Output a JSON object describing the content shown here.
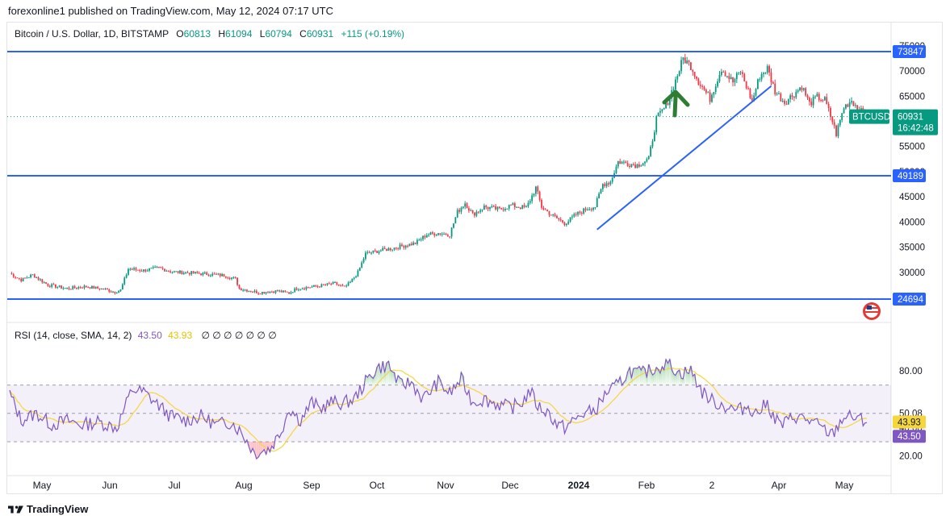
{
  "header": {
    "text": "forexonline1 published on TradingView.com, May 12, 2024 07:17 UTC"
  },
  "legend": {
    "symbol": "Bitcoin / U.S. Dollar, 1D, BITSTAMP",
    "o_label": "O",
    "o": "60813",
    "h_label": "H",
    "h": "61094",
    "l_label": "L",
    "l": "60794",
    "c_label": "C",
    "c": "60931",
    "change": "+115 (+0.19%)"
  },
  "price_axis": {
    "ticks": [
      "75000",
      "70000",
      "65000",
      "55000",
      "50000",
      "45000",
      "40000",
      "35000",
      "30000"
    ],
    "levels": [
      {
        "label": "73847",
        "value": 73847
      },
      {
        "label": "49189",
        "value": 49189
      },
      {
        "label": "24694",
        "value": 24694
      }
    ],
    "current": {
      "ticker": "BTCUSD",
      "price": "60931",
      "countdown": "16:42:48",
      "value": 60931
    }
  },
  "rsi": {
    "legend": "RSI (14, close, SMA, 14, 2)",
    "value": "43.50",
    "sma": "43.93",
    "symbols": "∅ ∅ ∅ ∅ ∅ ∅ ∅",
    "ticks": [
      "80.00",
      "50.08",
      "40.00",
      "33.40",
      "20.00"
    ],
    "badge_sma": "43.93",
    "badge_rsi": "43.50"
  },
  "time_axis": [
    "May",
    "Jun",
    "Jul",
    "Aug",
    "Sep",
    "Oct",
    "Nov",
    "Dec",
    "2024",
    "Feb",
    "2",
    "Apr",
    "May"
  ],
  "colors": {
    "up": "#089981",
    "down": "#f23645",
    "line": "#2962ff",
    "rsi": "#7e57c2",
    "rsi_ma": "#f5d63d",
    "arrow": "#2e7d32"
  },
  "footer": {
    "brand": "TradingView"
  },
  "chart_data": {
    "type": "candlestick",
    "symbol": "BTCUSD",
    "timeframe": "1D",
    "ylim": [
      21500,
      77000
    ],
    "anchors": [
      [
        0,
        29800
      ],
      [
        6,
        28500
      ],
      [
        12,
        29500
      ],
      [
        20,
        27500
      ],
      [
        30,
        26800
      ],
      [
        40,
        27200
      ],
      [
        50,
        26600
      ],
      [
        55,
        26100
      ],
      [
        58,
        26500
      ],
      [
        62,
        30700
      ],
      [
        70,
        30400
      ],
      [
        78,
        30900
      ],
      [
        85,
        30100
      ],
      [
        95,
        29900
      ],
      [
        105,
        29600
      ],
      [
        112,
        29400
      ],
      [
        118,
        28700
      ],
      [
        120,
        26800
      ],
      [
        130,
        26000
      ],
      [
        140,
        26300
      ],
      [
        146,
        25900
      ],
      [
        150,
        26800
      ],
      [
        160,
        27200
      ],
      [
        170,
        27800
      ],
      [
        175,
        27000
      ],
      [
        178,
        28000
      ],
      [
        182,
        30000
      ],
      [
        186,
        33700
      ],
      [
        192,
        34200
      ],
      [
        200,
        34800
      ],
      [
        206,
        35300
      ],
      [
        212,
        35800
      ],
      [
        218,
        37500
      ],
      [
        224,
        37800
      ],
      [
        230,
        37500
      ],
      [
        234,
        42000
      ],
      [
        238,
        43800
      ],
      [
        242,
        41500
      ],
      [
        248,
        43000
      ],
      [
        256,
        42500
      ],
      [
        262,
        43300
      ],
      [
        270,
        42800
      ],
      [
        275,
        46800
      ],
      [
        278,
        43000
      ],
      [
        284,
        41200
      ],
      [
        290,
        39800
      ],
      [
        292,
        40200
      ],
      [
        296,
        41500
      ],
      [
        302,
        42700
      ],
      [
        306,
        43100
      ],
      [
        310,
        47500
      ],
      [
        314,
        48000
      ],
      [
        318,
        52000
      ],
      [
        322,
        51700
      ],
      [
        328,
        51300
      ],
      [
        334,
        52500
      ],
      [
        338,
        60500
      ],
      [
        343,
        63000
      ],
      [
        347,
        67000
      ],
      [
        352,
        72500
      ],
      [
        356,
        71000
      ],
      [
        360,
        68000
      ],
      [
        366,
        64500
      ],
      [
        372,
        70500
      ],
      [
        378,
        67800
      ],
      [
        382,
        70000
      ],
      [
        388,
        64000
      ],
      [
        392,
        69000
      ],
      [
        396,
        70500
      ],
      [
        400,
        66000
      ],
      [
        405,
        63800
      ],
      [
        410,
        65500
      ],
      [
        414,
        67000
      ],
      [
        418,
        63500
      ],
      [
        422,
        64800
      ],
      [
        426,
        64200
      ],
      [
        430,
        60000
      ],
      [
        432,
        57500
      ],
      [
        436,
        62800
      ],
      [
        440,
        64200
      ],
      [
        444,
        62200
      ],
      [
        448,
        60931
      ]
    ],
    "rsi_anchors": [
      [
        0,
        64
      ],
      [
        6,
        45
      ],
      [
        14,
        50
      ],
      [
        22,
        42
      ],
      [
        30,
        45
      ],
      [
        38,
        42
      ],
      [
        46,
        44
      ],
      [
        56,
        40
      ],
      [
        64,
        67
      ],
      [
        70,
        65
      ],
      [
        76,
        58
      ],
      [
        84,
        48
      ],
      [
        92,
        45
      ],
      [
        100,
        48
      ],
      [
        108,
        42
      ],
      [
        116,
        44
      ],
      [
        122,
        35
      ],
      [
        128,
        22
      ],
      [
        136,
        25
      ],
      [
        142,
        38
      ],
      [
        146,
        54
      ],
      [
        152,
        45
      ],
      [
        158,
        58
      ],
      [
        162,
        53
      ],
      [
        168,
        58
      ],
      [
        174,
        57
      ],
      [
        180,
        60
      ],
      [
        186,
        72
      ],
      [
        192,
        82
      ],
      [
        198,
        84
      ],
      [
        204,
        70
      ],
      [
        210,
        72
      ],
      [
        216,
        60
      ],
      [
        224,
        72
      ],
      [
        230,
        64
      ],
      [
        236,
        74
      ],
      [
        242,
        58
      ],
      [
        248,
        60
      ],
      [
        254,
        57
      ],
      [
        262,
        54
      ],
      [
        268,
        58
      ],
      [
        272,
        66
      ],
      [
        276,
        55
      ],
      [
        282,
        50
      ],
      [
        286,
        42
      ],
      [
        290,
        40
      ],
      [
        294,
        44
      ],
      [
        300,
        50
      ],
      [
        306,
        52
      ],
      [
        312,
        65
      ],
      [
        318,
        70
      ],
      [
        324,
        80
      ],
      [
        330,
        78
      ],
      [
        338,
        82
      ],
      [
        344,
        86
      ],
      [
        350,
        78
      ],
      [
        356,
        80
      ],
      [
        362,
        65
      ],
      [
        368,
        58
      ],
      [
        374,
        55
      ],
      [
        380,
        52
      ],
      [
        386,
        55
      ],
      [
        390,
        50
      ],
      [
        396,
        57
      ],
      [
        400,
        46
      ],
      [
        404,
        42
      ],
      [
        410,
        48
      ],
      [
        416,
        46
      ],
      [
        422,
        42
      ],
      [
        426,
        38
      ],
      [
        430,
        35
      ],
      [
        436,
        48
      ],
      [
        442,
        47
      ],
      [
        448,
        43.5
      ]
    ],
    "trendline": {
      "from": {
        "day": 307,
        "price": 38500
      },
      "to": {
        "day": 398,
        "price": 67000
      }
    },
    "horizontal_levels": [
      73847,
      49189,
      24694
    ],
    "x_axis_labels": [
      "May",
      "Jun",
      "Jul",
      "Aug",
      "Sep",
      "Oct",
      "Nov",
      "Dec",
      "2024",
      "Feb",
      "2",
      "Apr",
      "May"
    ]
  }
}
